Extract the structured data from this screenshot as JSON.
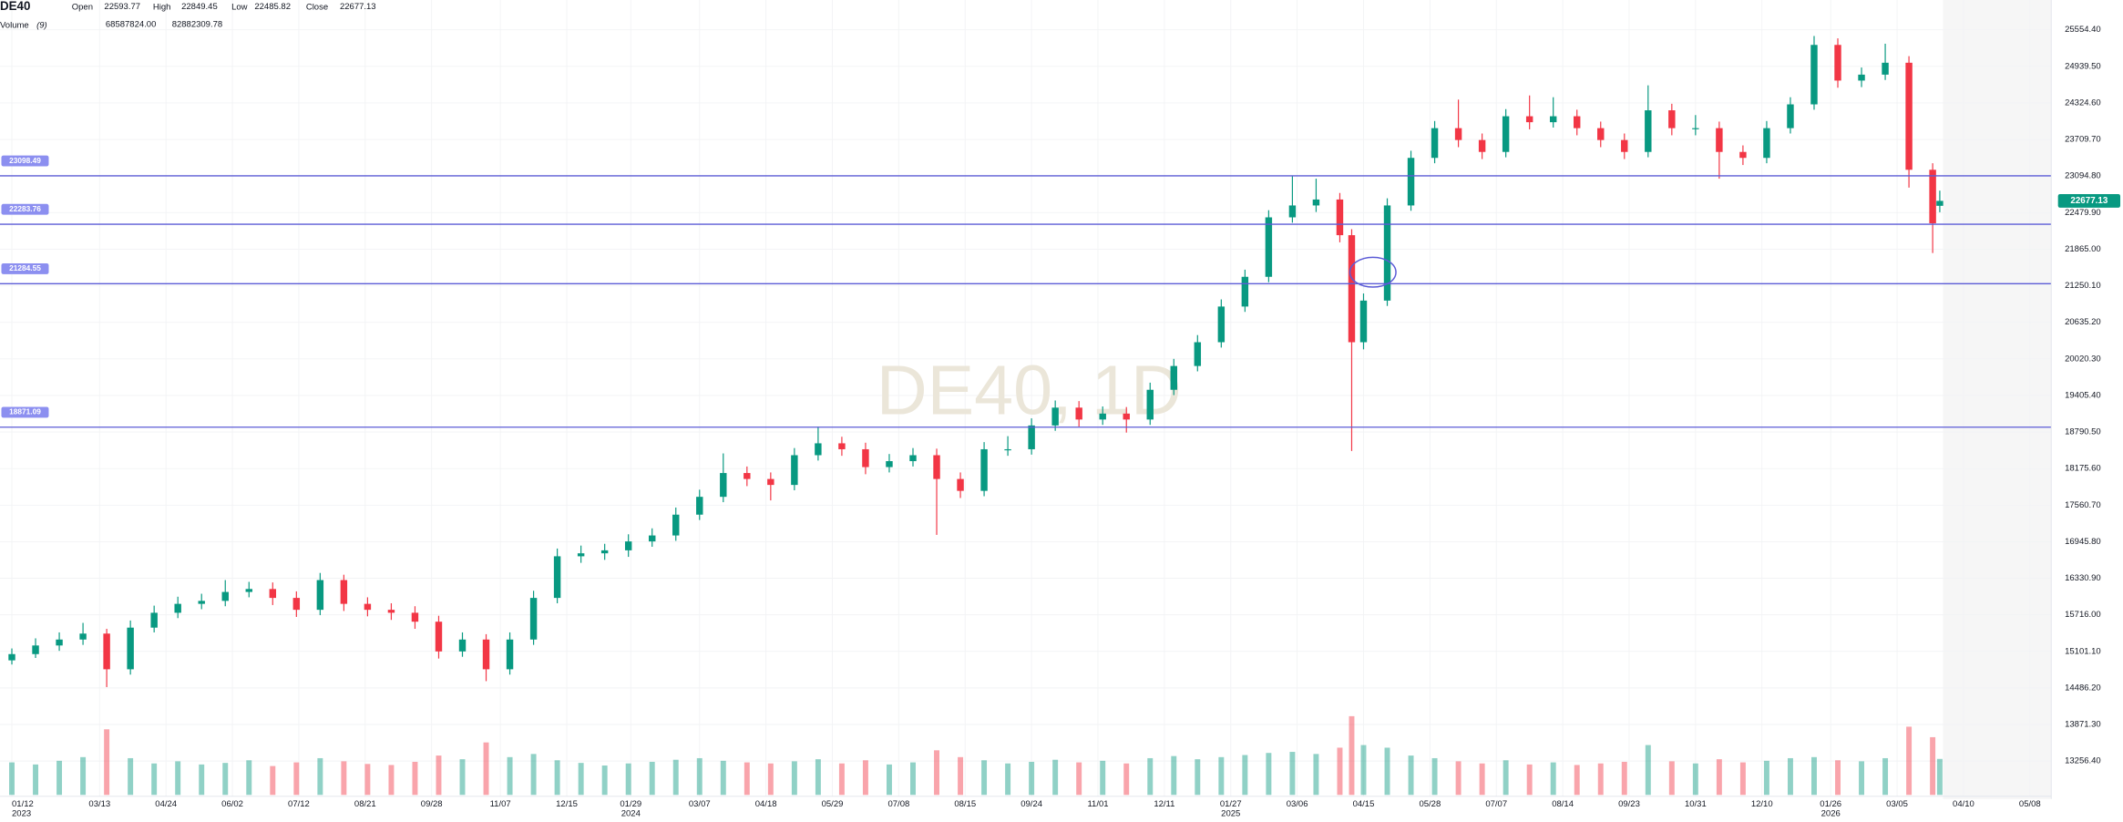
{
  "chart_data": {
    "type": "candlestick",
    "header": {
      "symbol": "DE40",
      "open_label": "Open",
      "high_label": "High",
      "low_label": "Low",
      "close_label": "Close",
      "volume_label": "Volume",
      "volume_period": "(9)",
      "volume_text": "68587824.00",
      "volume_ma_text": "82882309.78"
    },
    "watermark": "DE40, 1D",
    "up_color": "#089981",
    "down_color": "#f23645",
    "line_color": "#5b5bd6",
    "volume_ma_color": "#2962ff",
    "grid": true,
    "xlim": [
      -5,
      860
    ],
    "ylim": [
      12687,
      26055
    ],
    "vlim": [
      0,
      160000000
    ],
    "yticks": [
      {
        "value": 25554.4,
        "label": "25554.40"
      },
      {
        "value": 24939.5,
        "label": "24939.50"
      },
      {
        "value": 24324.6,
        "label": "24324.60"
      },
      {
        "value": 23709.7,
        "label": "23709.70"
      },
      {
        "value": 23094.8,
        "label": "23094.80"
      },
      {
        "value": 22479.9,
        "label": "22479.90"
      },
      {
        "value": 21865,
        "label": "21865.00"
      },
      {
        "value": 21250.1,
        "label": "21250.10"
      },
      {
        "value": 20635.2,
        "label": "20635.20"
      },
      {
        "value": 20020.3,
        "label": "20020.30"
      },
      {
        "value": 19405.4,
        "label": "19405.40"
      },
      {
        "value": 18790.5,
        "label": "18790.50"
      },
      {
        "value": 18175.6,
        "label": "18175.60"
      },
      {
        "value": 17560.7,
        "label": "17560.70"
      },
      {
        "value": 16945.8,
        "label": "16945.80"
      },
      {
        "value": 16330.9,
        "label": "16330.90"
      },
      {
        "value": 15716,
        "label": "15716.00"
      },
      {
        "value": 15101.1,
        "label": "15101.10"
      },
      {
        "value": 14486.2,
        "label": "14486.20"
      },
      {
        "value": 13871.3,
        "label": "13871.30"
      },
      {
        "value": 13256.4,
        "label": "13256.40"
      }
    ],
    "xticks": [
      {
        "value": 0,
        "label": "01/12"
      },
      {
        "value": 37,
        "label": "03/13"
      },
      {
        "value": 65,
        "label": "04/24"
      },
      {
        "value": 93,
        "label": "06/02"
      },
      {
        "value": 121,
        "label": "07/12"
      },
      {
        "value": 149,
        "label": "08/21"
      },
      {
        "value": 177,
        "label": "09/28"
      },
      {
        "value": 206,
        "label": "11/07"
      },
      {
        "value": 234,
        "label": "12/15"
      },
      {
        "value": 261,
        "label": "01/29"
      },
      {
        "value": 290,
        "label": "03/07"
      },
      {
        "value": 318,
        "label": "04/18"
      },
      {
        "value": 346,
        "label": "05/29"
      },
      {
        "value": 374,
        "label": "07/08"
      },
      {
        "value": 402,
        "label": "08/15"
      },
      {
        "value": 430,
        "label": "09/24"
      },
      {
        "value": 458,
        "label": "11/01"
      },
      {
        "value": 486,
        "label": "12/11"
      },
      {
        "value": 514,
        "label": "01/27"
      },
      {
        "value": 542,
        "label": "03/06"
      },
      {
        "value": 570,
        "label": "04/15"
      },
      {
        "value": 598,
        "label": "05/28"
      },
      {
        "value": 626,
        "label": "07/07"
      },
      {
        "value": 654,
        "label": "08/14"
      },
      {
        "value": 682,
        "label": "09/23"
      },
      {
        "value": 710,
        "label": "10/31"
      },
      {
        "value": 738,
        "label": "12/10"
      },
      {
        "value": 767,
        "label": "01/26"
      },
      {
        "value": 795,
        "label": "03/05"
      },
      {
        "value": 823,
        "label": "04/10"
      },
      {
        "value": 851,
        "label": "05/08"
      }
    ],
    "xyears": [
      {
        "value": 0,
        "label": "2023"
      },
      {
        "value": 261,
        "label": "2024"
      },
      {
        "value": 514,
        "label": "2025"
      },
      {
        "value": 767,
        "label": "2026"
      }
    ],
    "hlines": [
      23098.49,
      22283.76,
      21284.55,
      18871.09
    ],
    "x": [
      0,
      10,
      20,
      30,
      40,
      50,
      60,
      70,
      80,
      90,
      100,
      110,
      120,
      130,
      140,
      150,
      160,
      170,
      180,
      190,
      200,
      210,
      220,
      230,
      240,
      250,
      260,
      270,
      280,
      290,
      300,
      310,
      320,
      330,
      340,
      350,
      360,
      370,
      380,
      390,
      400,
      410,
      420,
      430,
      440,
      450,
      460,
      470,
      480,
      490,
      500,
      510,
      520,
      530,
      540,
      550,
      560,
      565,
      570,
      580,
      590,
      600,
      610,
      620,
      630,
      640,
      650,
      660,
      670,
      680,
      690,
      700,
      710,
      720,
      730,
      740,
      750,
      760,
      770,
      780,
      790,
      800,
      810,
      813
    ],
    "open": [
      14950,
      15055,
      15200,
      15300,
      15400,
      14800,
      15500,
      15750,
      15900,
      15950,
      16100,
      16150,
      16000,
      15800,
      16300,
      15900,
      15800,
      15750,
      15600,
      15100,
      15300,
      14800,
      15300,
      16000,
      16700,
      16750,
      16800,
      16950,
      17050,
      17400,
      17700,
      18100,
      18000,
      17900,
      18400,
      18600,
      18500,
      18200,
      18300,
      18400,
      18000,
      17800,
      18500,
      18500,
      18900,
      19200,
      19000,
      19100,
      19000,
      19500,
      19900,
      20300,
      20900,
      21400,
      22400,
      22600,
      22700,
      22100,
      20300,
      21000,
      22600,
      23400,
      23900,
      23700,
      23500,
      24100,
      24000,
      24100,
      23900,
      23700,
      23500,
      24200,
      23900,
      23900,
      23500,
      23400,
      23900,
      24300,
      25300,
      24700,
      24800,
      25000,
      23200,
      22593.77
    ],
    "high": [
      15150,
      15320,
      15420,
      15580,
      15480,
      15620,
      15870,
      16020,
      16070,
      16300,
      16270,
      16260,
      16110,
      16420,
      16390,
      16010,
      15910,
      15860,
      15700,
      15420,
      15390,
      15420,
      16120,
      16830,
      16880,
      16910,
      17070,
      17170,
      17520,
      17820,
      18430,
      18210,
      18110,
      18520,
      18880,
      18710,
      18610,
      18420,
      18520,
      18510,
      18110,
      18620,
      18720,
      19020,
      19320,
      19310,
      19220,
      19210,
      19620,
      20020,
      20420,
      21020,
      21520,
      22520,
      23100,
      23050,
      22810,
      22200,
      21120,
      22720,
      23520,
      24020,
      24380,
      23810,
      24220,
      24450,
      24420,
      24210,
      24010,
      23810,
      24620,
      24310,
      24120,
      24010,
      23610,
      24020,
      24420,
      25450,
      25410,
      24920,
      25320,
      25110,
      23310,
      22849.45
    ],
    "low": [
      14880,
      14990,
      15110,
      15210,
      14500,
      14710,
      15420,
      15660,
      15810,
      15860,
      16010,
      15880,
      15680,
      15710,
      15780,
      15690,
      15630,
      15480,
      14980,
      15010,
      14600,
      14710,
      15210,
      15910,
      16590,
      16640,
      16690,
      16860,
      16960,
      17310,
      17610,
      17880,
      17640,
      17810,
      18310,
      18390,
      18080,
      18110,
      18210,
      17060,
      17680,
      17710,
      18390,
      18410,
      18810,
      18880,
      18910,
      18780,
      18910,
      19410,
      19810,
      20210,
      20810,
      21310,
      22310,
      22490,
      21980,
      18470,
      20180,
      20910,
      22510,
      23310,
      23580,
      23380,
      23410,
      23880,
      23910,
      23780,
      23580,
      23380,
      23410,
      23780,
      23780,
      23050,
      23280,
      23310,
      23810,
      24210,
      24580,
      24590,
      24710,
      22900,
      21800,
      22485.82
    ],
    "close": [
      15055,
      15200,
      15300,
      15400,
      14800,
      15500,
      15750,
      15900,
      15950,
      16100,
      16150,
      16000,
      15800,
      16300,
      15900,
      15800,
      15750,
      15600,
      15100,
      15300,
      14800,
      15300,
      16000,
      16700,
      16750,
      16800,
      16950,
      17050,
      17400,
      17700,
      18100,
      18000,
      17900,
      18400,
      18600,
      18500,
      18200,
      18300,
      18400,
      18000,
      17800,
      18500,
      18500,
      18900,
      19200,
      19000,
      19100,
      19000,
      19500,
      19900,
      20300,
      20900,
      21400,
      22400,
      22600,
      22700,
      22100,
      20300,
      21000,
      22600,
      23400,
      23900,
      23700,
      23500,
      24100,
      24000,
      24100,
      23900,
      23700,
      23500,
      24200,
      23900,
      23900,
      23500,
      23400,
      23900,
      24300,
      25300,
      24700,
      24800,
      25000,
      23200,
      22300,
      22677.13
    ],
    "volume": [
      62000000,
      58000000,
      65000000,
      72000000,
      125000000,
      70000000,
      60000000,
      64000000,
      58000000,
      61000000,
      66000000,
      55000000,
      62000000,
      70000000,
      64000000,
      59000000,
      57000000,
      63000000,
      75000000,
      68000000,
      100000000,
      72000000,
      78000000,
      66000000,
      61000000,
      56000000,
      60000000,
      63000000,
      67000000,
      70000000,
      65000000,
      62000000,
      60000000,
      64000000,
      68000000,
      60000000,
      66000000,
      58000000,
      62000000,
      85000000,
      72000000,
      66000000,
      60000000,
      63000000,
      67000000,
      62000000,
      65000000,
      60000000,
      70000000,
      74000000,
      68000000,
      72000000,
      76000000,
      80000000,
      82000000,
      78000000,
      90000000,
      150000000,
      95000000,
      90000000,
      75000000,
      70000000,
      64000000,
      60000000,
      66000000,
      58000000,
      62000000,
      57000000,
      60000000,
      63000000,
      95000000,
      64000000,
      60000000,
      68000000,
      62000000,
      65000000,
      70000000,
      72000000,
      66000000,
      64000000,
      70000000,
      130000000,
      110000000,
      68587824
    ]
  }
}
